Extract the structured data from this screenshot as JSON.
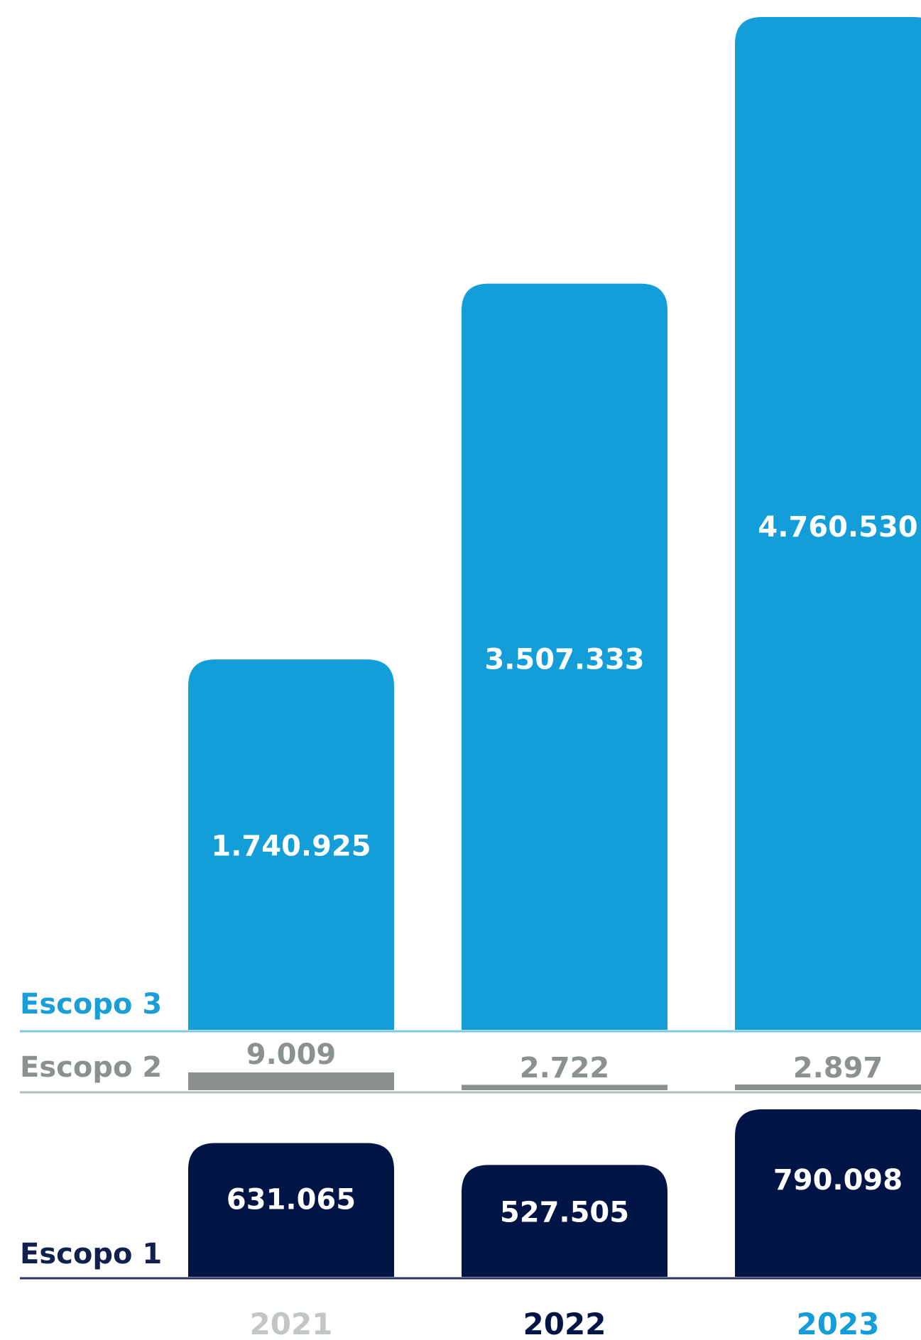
{
  "chart_data": {
    "type": "bar",
    "categories": [
      "2021",
      "2022",
      "2023"
    ],
    "series": [
      {
        "name": "Escopo 1",
        "values": [
          631065,
          527505,
          790098
        ],
        "labels": [
          "631.065",
          "527.505",
          "790.098"
        ],
        "color": "#001446"
      },
      {
        "name": "Escopo 2",
        "values": [
          9009,
          2722,
          2897
        ],
        "labels": [
          "9.009",
          "2.722",
          "2.897"
        ],
        "color": "#8a9190"
      },
      {
        "name": "Escopo 3",
        "values": [
          1740925,
          3507333,
          4760530
        ],
        "labels": [
          "1.740.925",
          "3.507.333",
          "4.760.530"
        ],
        "color": "#139dd9"
      }
    ],
    "category_colors": [
      "#c2c6c5",
      "#001446",
      "#139dd9"
    ],
    "legend_colors": {
      "escopo1": "#12204d",
      "escopo2": "#8a9190",
      "escopo3": "#1a9ed8"
    },
    "grid": false,
    "title": "",
    "xlabel": "",
    "ylabel": ""
  }
}
